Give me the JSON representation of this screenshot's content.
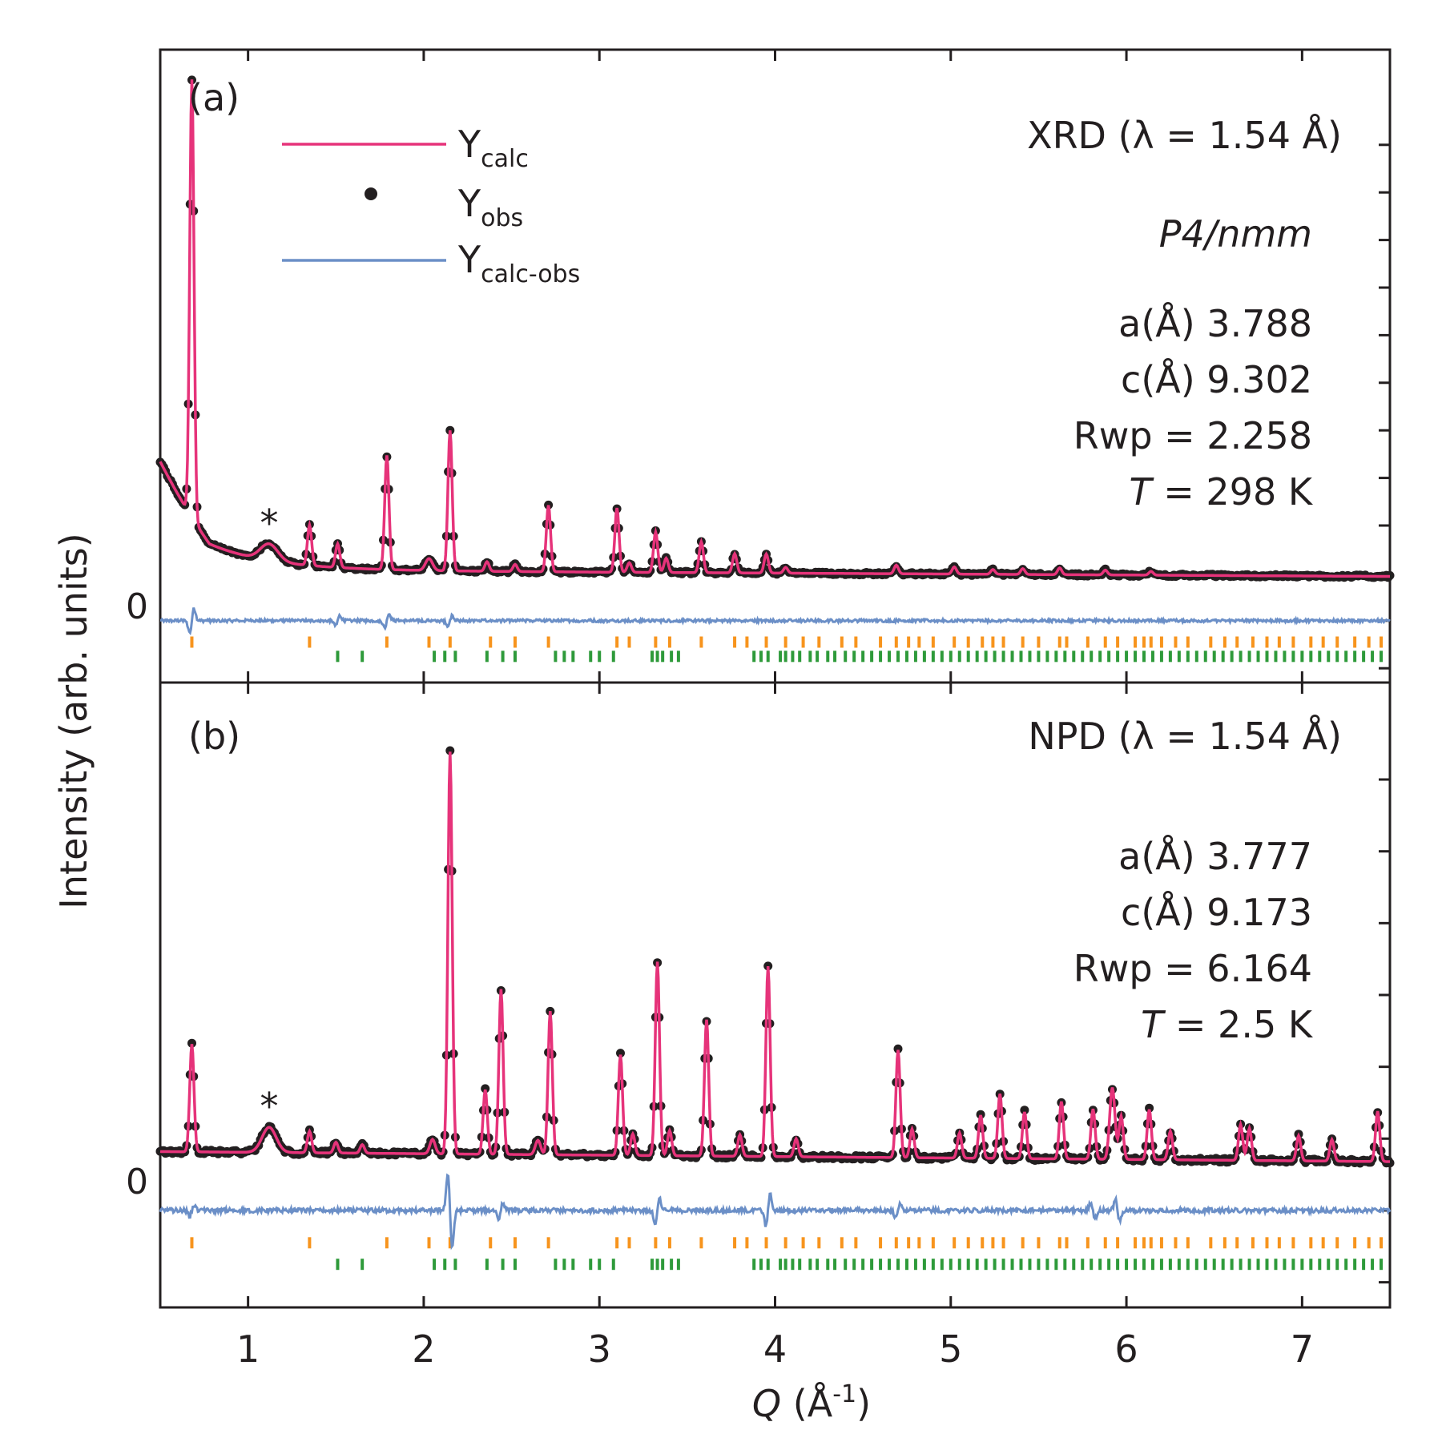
{
  "chart_data": [
    {
      "type": "line",
      "panel_label": "(a)",
      "method_label": "XRD (λ = 1.54 Å)",
      "space_group": "P4/nmm",
      "params": [
        "a(Å) 3.788",
        "c(Å) 9.302",
        "Rwp = 2.258"
      ],
      "temp_prefix": "T",
      "temp_value": " = 298 K",
      "asterisk": "*",
      "asterisk_q": 1.12,
      "ylim": [
        -1.3,
        12.0
      ],
      "zero_label": "0",
      "background": {
        "start": 2.6,
        "q0": 0.78,
        "base": 1.0,
        "decay": 0.35,
        "amp": 0.55,
        "tail_slope": -0.02
      },
      "peaks": [
        [
          0.68,
          9.2,
          0.012
        ],
        [
          1.12,
          0.35,
          0.05
        ],
        [
          1.35,
          0.85,
          0.012
        ],
        [
          1.51,
          0.5,
          0.012
        ],
        [
          1.79,
          2.4,
          0.012
        ],
        [
          2.03,
          0.25,
          0.02
        ],
        [
          2.15,
          2.95,
          0.012
        ],
        [
          2.36,
          0.2,
          0.012
        ],
        [
          2.52,
          0.15,
          0.012
        ],
        [
          2.71,
          1.4,
          0.012
        ],
        [
          3.1,
          1.35,
          0.012
        ],
        [
          3.17,
          0.2,
          0.012
        ],
        [
          3.32,
          0.85,
          0.012
        ],
        [
          3.38,
          0.3,
          0.012
        ],
        [
          3.58,
          0.65,
          0.012
        ],
        [
          3.77,
          0.4,
          0.012
        ],
        [
          3.95,
          0.4,
          0.012
        ],
        [
          4.06,
          0.12,
          0.012
        ],
        [
          4.69,
          0.18,
          0.012
        ],
        [
          5.02,
          0.15,
          0.012
        ],
        [
          5.24,
          0.1,
          0.012
        ],
        [
          5.41,
          0.12,
          0.012
        ],
        [
          5.62,
          0.14,
          0.012
        ],
        [
          5.88,
          0.1,
          0.012
        ],
        [
          6.14,
          0.08,
          0.012
        ]
      ],
      "diff_features": [
        [
          0.68,
          0.35
        ],
        [
          1.51,
          0.15
        ],
        [
          1.79,
          0.2
        ],
        [
          2.15,
          0.15
        ]
      ],
      "ticks_phase1": [
        0.68,
        1.35,
        1.79,
        2.03,
        2.15,
        2.38,
        2.52,
        2.71,
        3.1,
        3.17,
        3.32,
        3.4,
        3.58,
        3.77,
        3.84,
        3.95,
        4.06,
        4.16,
        4.25,
        4.38,
        4.46,
        4.6,
        4.69,
        4.76,
        4.82,
        4.9,
        5.02,
        5.1,
        5.18,
        5.24,
        5.3,
        5.41,
        5.5,
        5.62,
        5.66,
        5.78,
        5.88,
        5.95,
        6.05,
        6.1,
        6.14,
        6.2,
        6.28,
        6.35,
        6.48,
        6.56,
        6.63,
        6.72,
        6.8,
        6.87,
        6.95,
        7.05,
        7.12,
        7.2,
        7.3,
        7.38,
        7.45
      ],
      "ticks_phase2": [
        1.51,
        1.65,
        2.06,
        2.12,
        2.18,
        2.36,
        2.45,
        2.52,
        2.75,
        2.8,
        2.85,
        2.95,
        3.0,
        3.08,
        3.3,
        3.33,
        3.36,
        3.41,
        3.45,
        3.88,
        3.92,
        3.96,
        4.03,
        4.06,
        4.1,
        4.14,
        4.2,
        4.24,
        4.3,
        4.34,
        4.4,
        4.45,
        4.5,
        4.55,
        4.6,
        4.65,
        4.7,
        4.75,
        4.8,
        4.85,
        4.9,
        4.95,
        5.0,
        5.05,
        5.1,
        5.15,
        5.2,
        5.25,
        5.3,
        5.35,
        5.4,
        5.45,
        5.5,
        5.55,
        5.6,
        5.65,
        5.7,
        5.75,
        5.8,
        5.85,
        5.9,
        5.95,
        6.0,
        6.05,
        6.1,
        6.15,
        6.2,
        6.25,
        6.3,
        6.35,
        6.4,
        6.45,
        6.5,
        6.55,
        6.6,
        6.65,
        6.7,
        6.75,
        6.8,
        6.85,
        6.9,
        6.95,
        7.0,
        7.05,
        7.1,
        7.15,
        7.2,
        7.25,
        7.3,
        7.35,
        7.4,
        7.45
      ]
    },
    {
      "type": "line",
      "panel_label": "(b)",
      "method_label": "NPD (λ = 1.54 Å)",
      "params": [
        "a(Å) 3.777",
        "c(Å) 9.173",
        "Rwp = 6.164"
      ],
      "temp_prefix": "T",
      "temp_value": " = 2.5 K",
      "asterisk": "*",
      "asterisk_q": 1.12,
      "ylim": [
        -1.35,
        7.35
      ],
      "zero_label": "0",
      "background": {
        "start": 0.75,
        "q0": 0.75,
        "base": 0.75,
        "decay": 1.0,
        "amp": 0.0,
        "tail_slope": -0.02
      },
      "peaks": [
        [
          0.68,
          1.5,
          0.012
        ],
        [
          1.12,
          0.35,
          0.04
        ],
        [
          1.35,
          0.3,
          0.012
        ],
        [
          1.5,
          0.15,
          0.012
        ],
        [
          1.65,
          0.12,
          0.012
        ],
        [
          2.05,
          0.2,
          0.015
        ],
        [
          2.15,
          5.6,
          0.012
        ],
        [
          2.35,
          0.9,
          0.012
        ],
        [
          2.44,
          2.3,
          0.012
        ],
        [
          2.65,
          0.2,
          0.015
        ],
        [
          2.72,
          2.0,
          0.012
        ],
        [
          3.12,
          1.4,
          0.012
        ],
        [
          3.19,
          0.3,
          0.012
        ],
        [
          3.33,
          2.7,
          0.012
        ],
        [
          3.4,
          0.35,
          0.012
        ],
        [
          3.61,
          1.9,
          0.012
        ],
        [
          3.8,
          0.3,
          0.012
        ],
        [
          3.96,
          2.65,
          0.012
        ],
        [
          4.12,
          0.25,
          0.012
        ],
        [
          4.7,
          1.5,
          0.012
        ],
        [
          4.78,
          0.4,
          0.012
        ],
        [
          5.05,
          0.35,
          0.012
        ],
        [
          5.17,
          0.6,
          0.012
        ],
        [
          5.28,
          0.9,
          0.012
        ],
        [
          5.42,
          0.65,
          0.012
        ],
        [
          5.63,
          0.8,
          0.012
        ],
        [
          5.81,
          0.7,
          0.012
        ],
        [
          5.92,
          1.0,
          0.015
        ],
        [
          5.97,
          0.6,
          0.012
        ],
        [
          6.13,
          0.7,
          0.012
        ],
        [
          6.25,
          0.4,
          0.012
        ],
        [
          6.65,
          0.5,
          0.012
        ],
        [
          6.7,
          0.45,
          0.012
        ],
        [
          6.98,
          0.35,
          0.012
        ],
        [
          7.17,
          0.3,
          0.012
        ],
        [
          7.43,
          0.7,
          0.012
        ]
      ],
      "diff_features": [
        [
          0.68,
          0.1
        ],
        [
          2.15,
          -0.7
        ],
        [
          2.44,
          0.15
        ],
        [
          3.33,
          0.25
        ],
        [
          3.96,
          0.3
        ],
        [
          4.7,
          0.15
        ],
        [
          5.81,
          -0.15
        ],
        [
          5.95,
          -0.2
        ]
      ],
      "ticks_phase1": [
        0.68,
        1.35,
        1.79,
        2.03,
        2.15,
        2.38,
        2.52,
        2.71,
        3.1,
        3.17,
        3.32,
        3.4,
        3.58,
        3.77,
        3.84,
        3.95,
        4.06,
        4.16,
        4.25,
        4.38,
        4.46,
        4.6,
        4.69,
        4.76,
        4.82,
        4.9,
        5.02,
        5.1,
        5.18,
        5.24,
        5.3,
        5.41,
        5.5,
        5.62,
        5.66,
        5.78,
        5.88,
        5.95,
        6.05,
        6.1,
        6.14,
        6.2,
        6.28,
        6.35,
        6.48,
        6.56,
        6.63,
        6.72,
        6.8,
        6.87,
        6.95,
        7.05,
        7.12,
        7.2,
        7.3,
        7.38,
        7.45
      ],
      "ticks_phase2": [
        1.51,
        1.65,
        2.06,
        2.12,
        2.18,
        2.36,
        2.45,
        2.52,
        2.75,
        2.8,
        2.85,
        2.95,
        3.0,
        3.08,
        3.3,
        3.33,
        3.36,
        3.41,
        3.45,
        3.88,
        3.92,
        3.96,
        4.03,
        4.06,
        4.1,
        4.14,
        4.2,
        4.24,
        4.3,
        4.34,
        4.4,
        4.45,
        4.5,
        4.55,
        4.6,
        4.65,
        4.7,
        4.75,
        4.8,
        4.85,
        4.9,
        4.95,
        5.0,
        5.05,
        5.1,
        5.15,
        5.2,
        5.25,
        5.3,
        5.35,
        5.4,
        5.45,
        5.5,
        5.55,
        5.6,
        5.65,
        5.7,
        5.75,
        5.8,
        5.85,
        5.9,
        5.95,
        6.0,
        6.05,
        6.1,
        6.15,
        6.2,
        6.25,
        6.3,
        6.35,
        6.4,
        6.45,
        6.5,
        6.55,
        6.6,
        6.65,
        6.7,
        6.75,
        6.8,
        6.85,
        6.9,
        6.95,
        7.0,
        7.05,
        7.1,
        7.15,
        7.2,
        7.25,
        7.3,
        7.35,
        7.4,
        7.45
      ]
    }
  ],
  "x_axis": {
    "range": [
      0.5,
      7.5
    ],
    "ticks": [
      1,
      2,
      3,
      4,
      5,
      6,
      7
    ],
    "tick_labels": [
      "1",
      "2",
      "3",
      "4",
      "5",
      "6",
      "7"
    ],
    "label_italic": "Q",
    "label_main": " (Å",
    "label_sup": "-1",
    "label_close": ")"
  },
  "y_axis_label": "Intensity (arb. units)",
  "legend": [
    {
      "symbol": "line",
      "main": "Y",
      "sub": "calc",
      "color": "#e6337a"
    },
    {
      "symbol": "dot",
      "main": "Y",
      "sub": "obs",
      "color": "#231f20"
    },
    {
      "symbol": "line",
      "main": "Y",
      "sub": "calc-obs",
      "color": "#6b8fc7"
    }
  ],
  "colors": {
    "calc": "#e6337a",
    "obs": "#231f20",
    "diff": "#6b8fc7",
    "phase1_ticks": "#f7941d",
    "phase2_ticks": "#2e9a3a",
    "axis": "#231f20"
  }
}
